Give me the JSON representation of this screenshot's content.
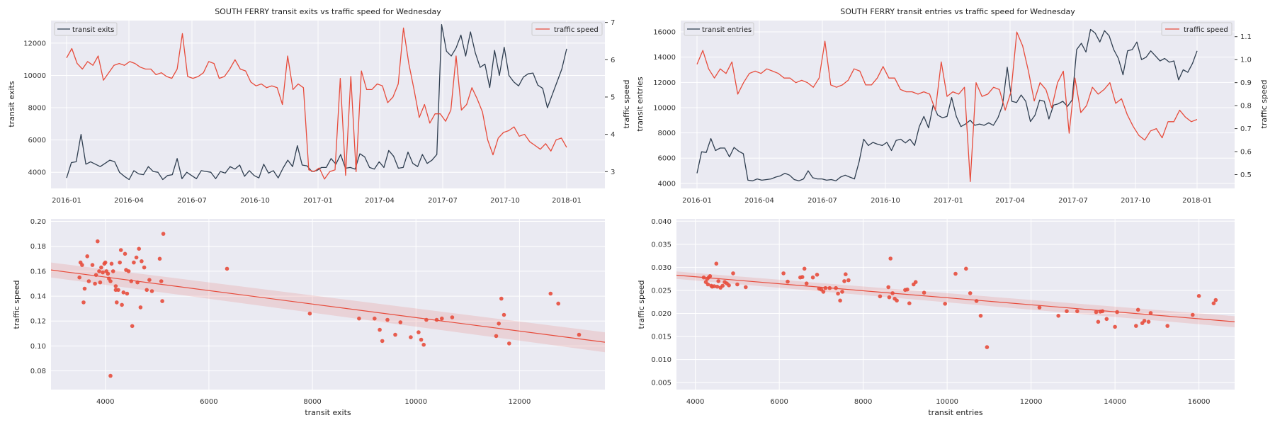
{
  "colors": {
    "background": "#eaeaf2",
    "transit": "#2f3e50",
    "traffic": "#e74c3c",
    "band": "#e74c3c",
    "grid": "#ffffff"
  },
  "chart_data": [
    {
      "type": "line",
      "title": "SOUTH FERRY transit exits vs traffic speed for Wednesday",
      "ylabel_left": "transit exits",
      "ylabel_right": "traffic speed",
      "x_ticks": [
        "2016-01",
        "2016-04",
        "2016-07",
        "2016-10",
        "2017-01",
        "2017-04",
        "2017-07",
        "2017-10",
        "2018-01"
      ],
      "y_ticks_left": [
        "4000",
        "6000",
        "8000",
        "10000",
        "12000"
      ],
      "y_ticks_right": [
        "3",
        "4",
        "5",
        "6",
        "7"
      ],
      "ylim_left": [
        3000,
        13400
      ],
      "ylim_right": [
        2.55,
        7.05
      ],
      "legend_left": "transit exits",
      "legend_right": "traffic speed",
      "series": [
        {
          "name": "transit exits",
          "axis": "left",
          "values": [
            3650,
            4600,
            4650,
            6350,
            4500,
            4650,
            4500,
            4350,
            4550,
            4750,
            4650,
            4000,
            3750,
            3550,
            4100,
            3900,
            3850,
            4350,
            4050,
            4000,
            3550,
            3800,
            3850,
            4850,
            3600,
            4000,
            3800,
            3600,
            4100,
            4050,
            4000,
            3600,
            4050,
            3950,
            4350,
            4200,
            4450,
            3750,
            4100,
            3800,
            3650,
            4500,
            3950,
            4100,
            3650,
            4250,
            4750,
            4350,
            5650,
            4450,
            4400,
            4050,
            4100,
            4300,
            4300,
            4850,
            4500,
            5100,
            4250,
            4300,
            4200,
            5150,
            4950,
            4300,
            4200,
            4650,
            4300,
            5350,
            5000,
            4250,
            4300,
            5250,
            4550,
            4350,
            5100,
            4550,
            4750,
            5100,
            13150,
            11500,
            11200,
            11700,
            12500,
            11200,
            12700,
            11400,
            10500,
            10700,
            9250,
            11550,
            10000,
            11750,
            10000,
            9600,
            9350,
            9900,
            10100,
            10150,
            9400,
            9200,
            8000,
            8800,
            9600,
            10400,
            11650
          ]
        },
        {
          "name": "traffic speed",
          "axis": "right",
          "values": [
            6.05,
            6.3,
            5.9,
            5.75,
            5.95,
            5.85,
            6.1,
            5.45,
            5.65,
            5.85,
            5.9,
            5.85,
            5.95,
            5.9,
            5.8,
            5.75,
            5.75,
            5.6,
            5.65,
            5.55,
            5.5,
            5.75,
            6.7,
            5.55,
            5.5,
            5.55,
            5.65,
            5.95,
            5.9,
            5.5,
            5.55,
            5.75,
            6.0,
            5.75,
            5.7,
            5.4,
            5.3,
            5.35,
            5.25,
            5.3,
            5.25,
            4.8,
            6.1,
            5.2,
            5.35,
            5.25,
            3.05,
            3.0,
            3.1,
            2.8,
            3.0,
            3.05,
            5.5,
            2.9,
            5.55,
            3.0,
            5.7,
            5.2,
            5.2,
            5.35,
            5.3,
            4.85,
            5.0,
            5.35,
            6.85,
            5.9,
            5.2,
            4.45,
            4.8,
            4.3,
            4.55,
            4.55,
            4.35,
            4.65,
            6.1,
            4.65,
            4.8,
            5.25,
            4.95,
            4.6,
            3.85,
            3.45,
            3.9,
            4.05,
            4.1,
            4.2,
            3.95,
            4.0,
            3.8,
            3.7,
            3.6,
            3.75,
            3.55,
            3.85,
            3.9,
            3.65
          ]
        }
      ]
    },
    {
      "type": "line",
      "title": "SOUTH FERRY transit entries vs traffic speed for Wednesday",
      "ylabel_left": "transit entries",
      "ylabel_right": "traffic speed",
      "x_ticks": [
        "2016-01",
        "2016-04",
        "2016-07",
        "2016-10",
        "2017-01",
        "2017-04",
        "2017-07",
        "2017-10",
        "2018-01"
      ],
      "y_ticks_left": [
        "4000",
        "6000",
        "8000",
        "10000",
        "12000",
        "14000",
        "16000"
      ],
      "y_ticks_right": [
        "0.5",
        "0.6",
        "0.7",
        "0.8",
        "0.9",
        "1.0",
        "1.1"
      ],
      "ylim_left": [
        3600,
        16900
      ],
      "ylim_right": [
        0.44,
        1.17
      ],
      "legend_left": "transit entries",
      "legend_right": "traffic speed",
      "series": [
        {
          "name": "transit entries",
          "axis": "left",
          "values": [
            4800,
            6500,
            6450,
            7550,
            6600,
            6800,
            6800,
            6100,
            6850,
            6550,
            6350,
            4250,
            4200,
            4350,
            4250,
            4300,
            4350,
            4500,
            4600,
            4800,
            4650,
            4300,
            4200,
            4350,
            5000,
            4450,
            4350,
            4350,
            4250,
            4300,
            4200,
            4500,
            4650,
            4500,
            4350,
            5700,
            7500,
            7000,
            7250,
            7100,
            7000,
            7250,
            6600,
            7400,
            7500,
            7200,
            7500,
            7000,
            8500,
            9300,
            8400,
            10200,
            9400,
            9200,
            9300,
            10800,
            9300,
            8500,
            8700,
            9000,
            8600,
            8700,
            8600,
            8800,
            8600,
            9200,
            10200,
            13200,
            10500,
            10400,
            11000,
            10500,
            8900,
            9400,
            10600,
            10500,
            9100,
            10200,
            10300,
            10500,
            10100,
            10600,
            14600,
            15100,
            14400,
            16200,
            15900,
            15200,
            16100,
            15700,
            14600,
            13900,
            12600,
            14500,
            14600,
            15200,
            13800,
            14000,
            14500,
            14100,
            13700,
            13900,
            13600,
            13700,
            12200,
            13000,
            12800,
            13500,
            14500
          ]
        },
        {
          "name": "traffic speed",
          "axis": "right",
          "values": [
            0.98,
            1.04,
            0.96,
            0.92,
            0.96,
            0.94,
            0.99,
            0.85,
            0.9,
            0.94,
            0.95,
            0.94,
            0.96,
            0.95,
            0.94,
            0.92,
            0.92,
            0.9,
            0.91,
            0.9,
            0.88,
            0.92,
            1.08,
            0.89,
            0.88,
            0.89,
            0.91,
            0.96,
            0.95,
            0.89,
            0.89,
            0.92,
            0.97,
            0.92,
            0.92,
            0.87,
            0.86,
            0.86,
            0.85,
            0.86,
            0.85,
            0.78,
            0.99,
            0.84,
            0.86,
            0.85,
            0.88,
            0.47,
            0.9,
            0.84,
            0.85,
            0.88,
            0.87,
            0.78,
            0.86,
            1.12,
            1.06,
            0.95,
            0.82,
            0.9,
            0.87,
            0.79,
            0.9,
            0.95,
            0.68,
            0.92,
            0.77,
            0.8,
            0.88,
            0.85,
            0.87,
            0.9,
            0.81,
            0.83,
            0.76,
            0.71,
            0.67,
            0.65,
            0.69,
            0.7,
            0.66,
            0.73,
            0.73,
            0.78,
            0.75,
            0.73,
            0.74
          ]
        }
      ]
    },
    {
      "type": "scatter",
      "xlabel": "transit exits",
      "ylabel": "traffic speed",
      "x_ticks": [
        "4000",
        "6000",
        "8000",
        "10000",
        "12000"
      ],
      "y_ticks": [
        "0.08",
        "0.10",
        "0.12",
        "0.14",
        "0.16",
        "0.18",
        "0.20"
      ],
      "xlim": [
        2950,
        13650
      ],
      "ylim": [
        0.065,
        0.202
      ],
      "regression": {
        "x": [
          2950,
          13650
        ],
        "y": [
          0.161,
          0.103
        ],
        "band_start": 0.006,
        "band_end": 0.008
      },
      "points": [
        [
          3500,
          0.155
        ],
        [
          3520,
          0.167
        ],
        [
          3550,
          0.165
        ],
        [
          3580,
          0.135
        ],
        [
          3600,
          0.146
        ],
        [
          3650,
          0.172
        ],
        [
          3680,
          0.152
        ],
        [
          3750,
          0.165
        ],
        [
          3800,
          0.15
        ],
        [
          3820,
          0.157
        ],
        [
          3850,
          0.184
        ],
        [
          3880,
          0.16
        ],
        [
          3900,
          0.151
        ],
        [
          3920,
          0.163
        ],
        [
          3950,
          0.159
        ],
        [
          3980,
          0.166
        ],
        [
          4000,
          0.167
        ],
        [
          4020,
          0.16
        ],
        [
          4050,
          0.158
        ],
        [
          4070,
          0.154
        ],
        [
          4100,
          0.152
        ],
        [
          4120,
          0.166
        ],
        [
          4150,
          0.16
        ],
        [
          4200,
          0.148
        ],
        [
          4220,
          0.135
        ],
        [
          4250,
          0.145
        ],
        [
          4280,
          0.167
        ],
        [
          4300,
          0.177
        ],
        [
          4320,
          0.133
        ],
        [
          4350,
          0.143
        ],
        [
          4380,
          0.174
        ],
        [
          4400,
          0.161
        ],
        [
          4420,
          0.142
        ],
        [
          4450,
          0.16
        ],
        [
          4500,
          0.152
        ],
        [
          4520,
          0.116
        ],
        [
          4550,
          0.167
        ],
        [
          4600,
          0.171
        ],
        [
          4620,
          0.151
        ],
        [
          4650,
          0.178
        ],
        [
          4680,
          0.131
        ],
        [
          4700,
          0.168
        ],
        [
          4750,
          0.163
        ],
        [
          4800,
          0.145
        ],
        [
          4850,
          0.153
        ],
        [
          4900,
          0.144
        ],
        [
          5050,
          0.17
        ],
        [
          5080,
          0.152
        ],
        [
          5100,
          0.136
        ],
        [
          5120,
          0.19
        ],
        [
          4100,
          0.076
        ],
        [
          4200,
          0.145
        ],
        [
          6350,
          0.162
        ],
        [
          7950,
          0.126
        ],
        [
          8900,
          0.122
        ],
        [
          9200,
          0.122
        ],
        [
          9300,
          0.113
        ],
        [
          9350,
          0.104
        ],
        [
          9450,
          0.121
        ],
        [
          9600,
          0.109
        ],
        [
          9700,
          0.119
        ],
        [
          9900,
          0.107
        ],
        [
          10050,
          0.111
        ],
        [
          10100,
          0.105
        ],
        [
          10200,
          0.121
        ],
        [
          10150,
          0.101
        ],
        [
          10400,
          0.121
        ],
        [
          10500,
          0.122
        ],
        [
          10700,
          0.123
        ],
        [
          11550,
          0.108
        ],
        [
          11600,
          0.118
        ],
        [
          11650,
          0.138
        ],
        [
          11700,
          0.125
        ],
        [
          11800,
          0.102
        ],
        [
          12600,
          0.142
        ],
        [
          12750,
          0.134
        ],
        [
          13150,
          0.109
        ]
      ]
    },
    {
      "type": "scatter",
      "xlabel": "transit entries",
      "ylabel": "traffic speed",
      "x_ticks": [
        "4000",
        "6000",
        "8000",
        "10000",
        "12000",
        "14000",
        "16000"
      ],
      "y_ticks": [
        "0.005",
        "0.010",
        "0.015",
        "0.020",
        "0.025",
        "0.030",
        "0.035",
        "0.040"
      ],
      "xlim": [
        3550,
        16850
      ],
      "ylim": [
        0.0035,
        0.0405
      ],
      "regression": {
        "x": [
          3550,
          16850
        ],
        "y": [
          0.0283,
          0.0182
        ],
        "band_start": 0.0008,
        "band_end": 0.0012
      },
      "points": [
        [
          4200,
          0.0278
        ],
        [
          4250,
          0.0268
        ],
        [
          4280,
          0.0275
        ],
        [
          4300,
          0.0263
        ],
        [
          4320,
          0.0278
        ],
        [
          4350,
          0.0281
        ],
        [
          4380,
          0.026
        ],
        [
          4400,
          0.0258
        ],
        [
          4450,
          0.0259
        ],
        [
          4500,
          0.0308
        ],
        [
          4520,
          0.0258
        ],
        [
          4550,
          0.027
        ],
        [
          4600,
          0.0256
        ],
        [
          4650,
          0.026
        ],
        [
          4700,
          0.0268
        ],
        [
          4750,
          0.0265
        ],
        [
          4800,
          0.0261
        ],
        [
          4900,
          0.0287
        ],
        [
          5000,
          0.0263
        ],
        [
          5200,
          0.0257
        ],
        [
          6100,
          0.0287
        ],
        [
          6200,
          0.0269
        ],
        [
          6500,
          0.0278
        ],
        [
          6550,
          0.0279
        ],
        [
          6600,
          0.0297
        ],
        [
          6650,
          0.0265
        ],
        [
          6800,
          0.0278
        ],
        [
          6900,
          0.0284
        ],
        [
          6950,
          0.0254
        ],
        [
          7000,
          0.0252
        ],
        [
          7050,
          0.0247
        ],
        [
          7100,
          0.0255
        ],
        [
          7200,
          0.0255
        ],
        [
          7350,
          0.0255
        ],
        [
          7400,
          0.0243
        ],
        [
          7450,
          0.0228
        ],
        [
          7500,
          0.0247
        ],
        [
          7550,
          0.027
        ],
        [
          7580,
          0.0285
        ],
        [
          7650,
          0.0272
        ],
        [
          8400,
          0.0237
        ],
        [
          8600,
          0.0257
        ],
        [
          8620,
          0.0235
        ],
        [
          8650,
          0.0319
        ],
        [
          8700,
          0.0244
        ],
        [
          8750,
          0.0232
        ],
        [
          8800,
          0.0228
        ],
        [
          9000,
          0.0251
        ],
        [
          9050,
          0.0252
        ],
        [
          9100,
          0.0222
        ],
        [
          9200,
          0.0263
        ],
        [
          9250,
          0.0268
        ],
        [
          9450,
          0.0245
        ],
        [
          9950,
          0.0221
        ],
        [
          10200,
          0.0286
        ],
        [
          10450,
          0.0297
        ],
        [
          10550,
          0.0244
        ],
        [
          10700,
          0.0227
        ],
        [
          10800,
          0.0195
        ],
        [
          10950,
          0.0127
        ],
        [
          12200,
          0.0213
        ],
        [
          12650,
          0.0195
        ],
        [
          12850,
          0.0205
        ],
        [
          13100,
          0.0205
        ],
        [
          13550,
          0.0203
        ],
        [
          13600,
          0.0182
        ],
        [
          13650,
          0.0204
        ],
        [
          13700,
          0.0205
        ],
        [
          13800,
          0.0188
        ],
        [
          14000,
          0.0171
        ],
        [
          14050,
          0.0203
        ],
        [
          14500,
          0.0173
        ],
        [
          14550,
          0.0208
        ],
        [
          14650,
          0.0179
        ],
        [
          14700,
          0.0184
        ],
        [
          14800,
          0.0182
        ],
        [
          14850,
          0.0201
        ],
        [
          15250,
          0.0173
        ],
        [
          15850,
          0.0197
        ],
        [
          16000,
          0.0238
        ],
        [
          16350,
          0.0222
        ],
        [
          16400,
          0.0229
        ]
      ]
    }
  ]
}
